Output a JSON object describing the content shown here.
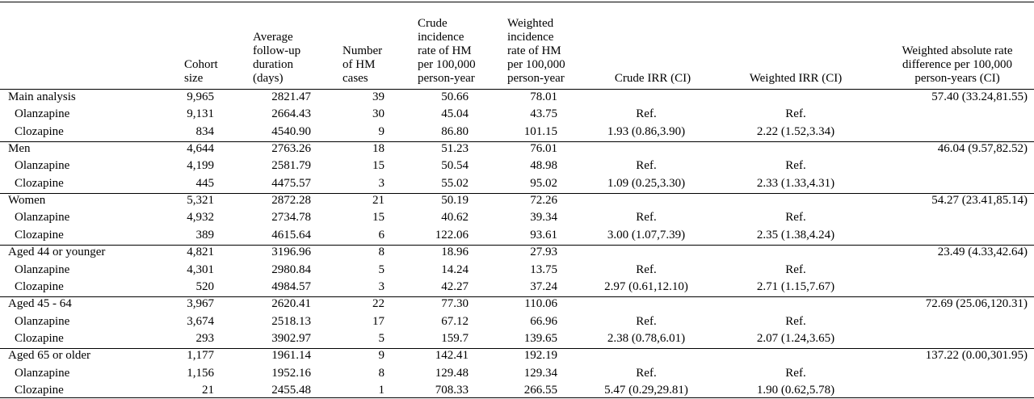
{
  "table": {
    "header": [
      [
        "Cohort",
        "size"
      ],
      [
        "Average",
        "follow-up",
        "duration",
        "(days)"
      ],
      [
        "Number",
        "of HM",
        "cases"
      ],
      [
        "Crude",
        "incidence",
        "rate of HM",
        "per 100,000",
        "person-year"
      ],
      [
        "Weighted",
        "incidence",
        "rate of HM",
        "per 100,000",
        "person-year"
      ],
      [
        "Crude IRR (CI)"
      ],
      [
        "Weighted IRR (CI)"
      ],
      [
        "Weighted absolute rate",
        "difference per 100,000",
        "person-years (CI)"
      ]
    ],
    "rows": [
      [
        "Main analysis",
        "9,965",
        "2821.47",
        "39",
        "50.66",
        "78.01",
        null,
        null,
        "57.40 (33.24,81.55)"
      ],
      [
        "Olanzapine",
        "9,131",
        "2664.43",
        "30",
        "45.04",
        "43.75",
        "Ref.",
        "Ref.",
        null
      ],
      [
        "Clozapine",
        "834",
        "4540.90",
        "9",
        "86.80",
        "101.15",
        "1.93 (0.86,3.90)",
        "2.22 (1.52,3.34)",
        null
      ],
      [
        "Men",
        "4,644",
        "2763.26",
        "18",
        "51.23",
        "76.01",
        null,
        null,
        "46.04 (9.57,82.52)"
      ],
      [
        "Olanzapine",
        "4,199",
        "2581.79",
        "15",
        "50.54",
        "48.98",
        "Ref.",
        "Ref.",
        null
      ],
      [
        "Clozapine",
        "445",
        "4475.57",
        "3",
        "55.02",
        "95.02",
        "1.09 (0.25,3.30)",
        "2.33 (1.33,4.31)",
        null
      ],
      [
        "Women",
        "5,321",
        "2872.28",
        "21",
        "50.19",
        "72.26",
        null,
        null,
        "54.27 (23.41,85.14)"
      ],
      [
        "Olanzapine",
        "4,932",
        "2734.78",
        "15",
        "40.62",
        "39.34",
        "Ref.",
        "Ref.",
        null
      ],
      [
        "Clozapine",
        "389",
        "4615.64",
        "6",
        "122.06",
        "93.61",
        "3.00 (1.07,7.39)",
        "2.35 (1.38,4.24)",
        null
      ],
      [
        "Aged 44 or younger",
        "4,821",
        "3196.96",
        "8",
        "18.96",
        "27.93",
        null,
        null,
        "23.49 (4.33,42.64)"
      ],
      [
        "Olanzapine",
        "4,301",
        "2980.84",
        "5",
        "14.24",
        "13.75",
        "Ref.",
        "Ref.",
        null
      ],
      [
        "Clozapine",
        "520",
        "4984.57",
        "3",
        "42.27",
        "37.24",
        "2.97 (0.61,12.10)",
        "2.71 (1.15,7.67)",
        null
      ],
      [
        "Aged 45 - 64",
        "3,967",
        "2620.41",
        "22",
        "77.30",
        "110.06",
        null,
        null,
        "72.69 (25.06,120.31)"
      ],
      [
        "Olanzapine",
        "3,674",
        "2518.13",
        "17",
        "67.12",
        "66.96",
        "Ref.",
        "Ref.",
        null
      ],
      [
        "Clozapine",
        "293",
        "3902.97",
        "5",
        "159.7",
        "139.65",
        "2.38 (0.78,6.01)",
        "2.07 (1.24,3.65)",
        null
      ],
      [
        "Aged 65 or older",
        "1,177",
        "1961.14",
        "9",
        "142.41",
        "192.19",
        null,
        null,
        "137.22 (0.00,301.95)"
      ],
      [
        "Olanzapine",
        "1,156",
        "1952.16",
        "8",
        "129.48",
        "129.34",
        "Ref.",
        "Ref.",
        null
      ],
      [
        "Clozapine",
        "21",
        "2455.48",
        "1",
        "708.33",
        "266.55",
        "5.47 (0.29,29.81)",
        "1.90 (0.62,5.78)",
        null
      ]
    ]
  }
}
